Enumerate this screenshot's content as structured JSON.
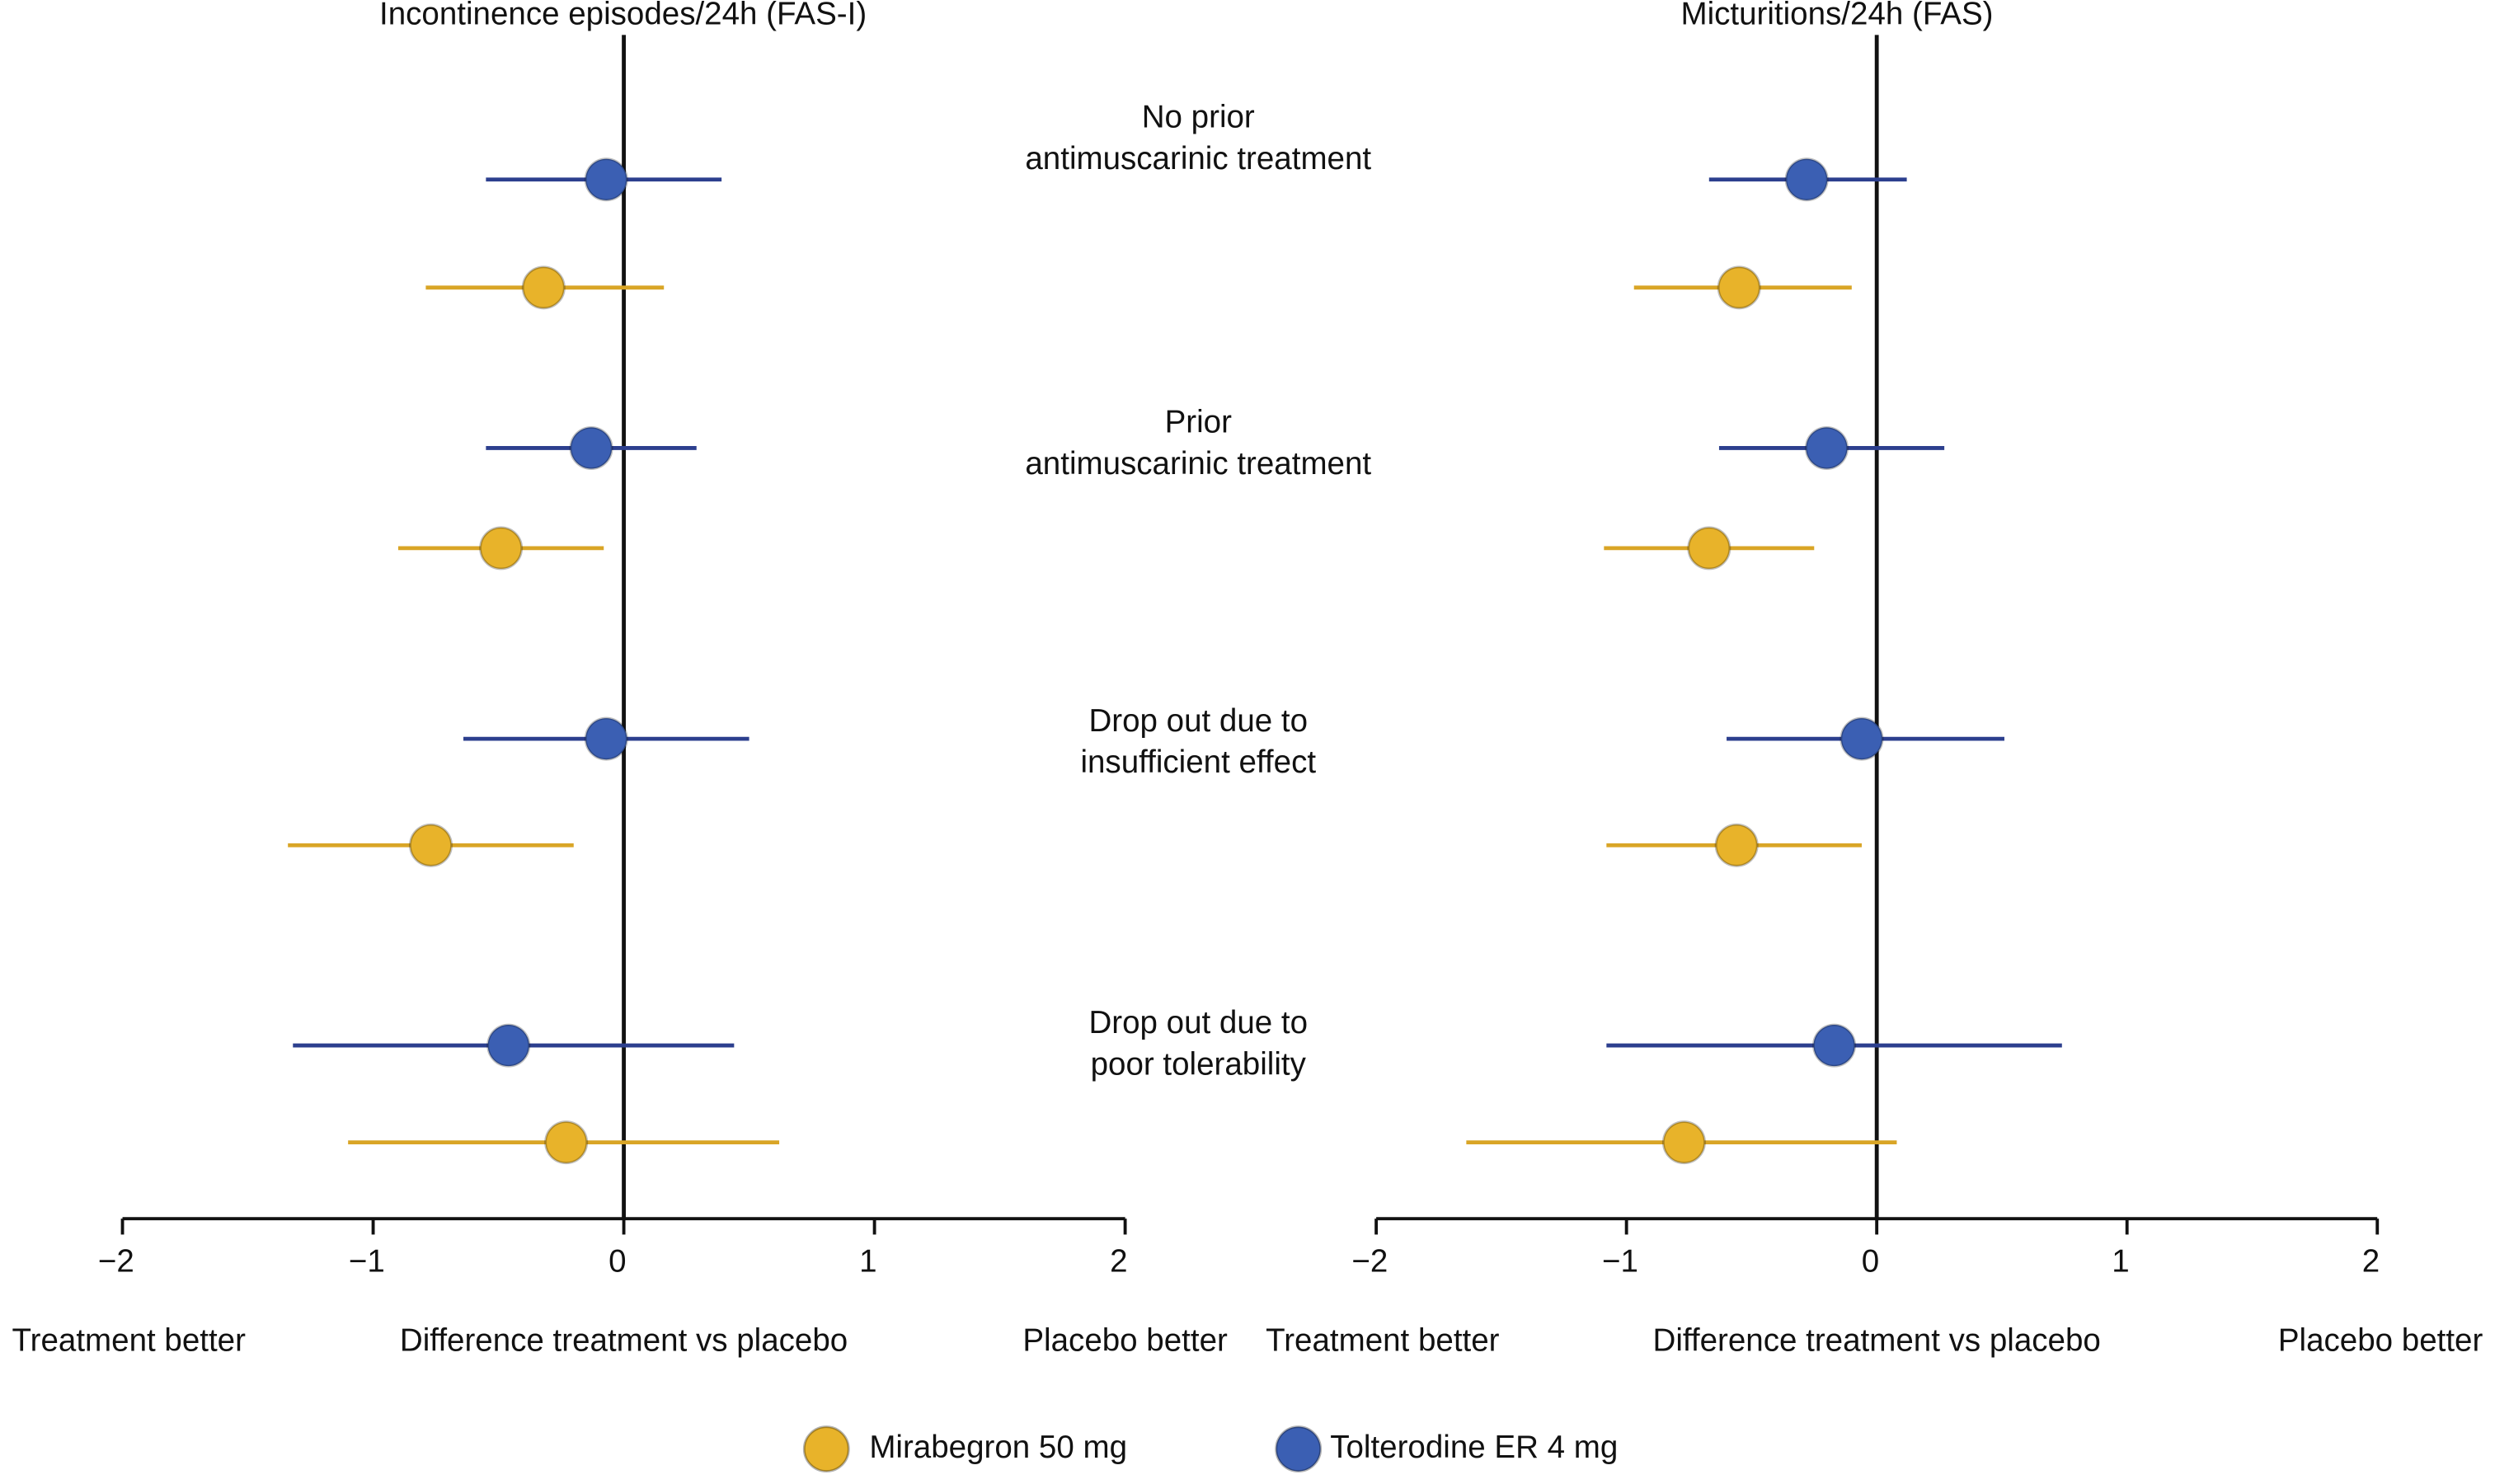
{
  "chart_data": [
    {
      "type": "forest",
      "title": "Incontinence episodes/24h (FAS-I)",
      "categories": [
        [
          "No prior",
          "antimuscarinic treatment"
        ],
        [
          "Prior",
          "antimuscarinic treatment"
        ],
        [
          "Drop out due to",
          "insufficient effect"
        ],
        [
          "Drop out due to",
          "poor tolerability"
        ]
      ],
      "series": [
        {
          "name": "Tolterodine ER 4 mg",
          "color": "#3b5fb3",
          "line_color": "#2c3f8e",
          "values": [
            -0.07,
            -0.13,
            -0.07,
            -0.46
          ],
          "ci_low": [
            -0.55,
            -0.55,
            -0.64,
            -1.32
          ],
          "ci_high": [
            0.39,
            0.29,
            0.5,
            0.44
          ]
        },
        {
          "name": "Mirabegron 50 mg",
          "color": "#e8b32a",
          "line_color": "#d9a526",
          "values": [
            -0.32,
            -0.49,
            -0.77,
            -0.23
          ],
          "ci_low": [
            -0.79,
            -0.9,
            -1.34,
            -1.1
          ],
          "ci_high": [
            0.16,
            -0.08,
            -0.2,
            0.62
          ]
        }
      ],
      "xlim": [
        -2,
        2
      ],
      "xticks": [
        {
          "value": -2,
          "label": "−2"
        },
        {
          "value": -1,
          "label": "−1"
        },
        0,
        1,
        2
      ],
      "xlabel": "Difference treatment vs placebo",
      "left_note": "Treatment better",
      "right_note": "Placebo better"
    },
    {
      "type": "forest",
      "title": "Micturitions/24h (FAS)",
      "series": [
        {
          "color": "#3b5fb3",
          "line_color": "#2c3f8e",
          "values": [
            -0.28,
            -0.2,
            -0.06,
            -0.17
          ],
          "ci_low": [
            -0.67,
            -0.63,
            -0.6,
            -1.08
          ],
          "ci_high": [
            0.12,
            0.27,
            0.51,
            0.74
          ]
        },
        {
          "color": "#e8b32a",
          "line_color": "#d9a526",
          "values": [
            -0.55,
            -0.67,
            -0.56,
            -0.77
          ],
          "ci_low": [
            -0.97,
            -1.09,
            -1.08,
            -1.64
          ],
          "ci_high": [
            -0.1,
            -0.25,
            -0.06,
            0.08
          ]
        }
      ],
      "xlim": [
        -2,
        2
      ],
      "xticks": [
        {
          "value": -2,
          "label": "−2"
        },
        {
          "value": -1,
          "label": "−1"
        },
        0,
        1,
        2
      ],
      "xlabel": "Difference treatment vs placebo",
      "left_note": "Treatment better",
      "right_note": "Placebo better"
    }
  ]
}
